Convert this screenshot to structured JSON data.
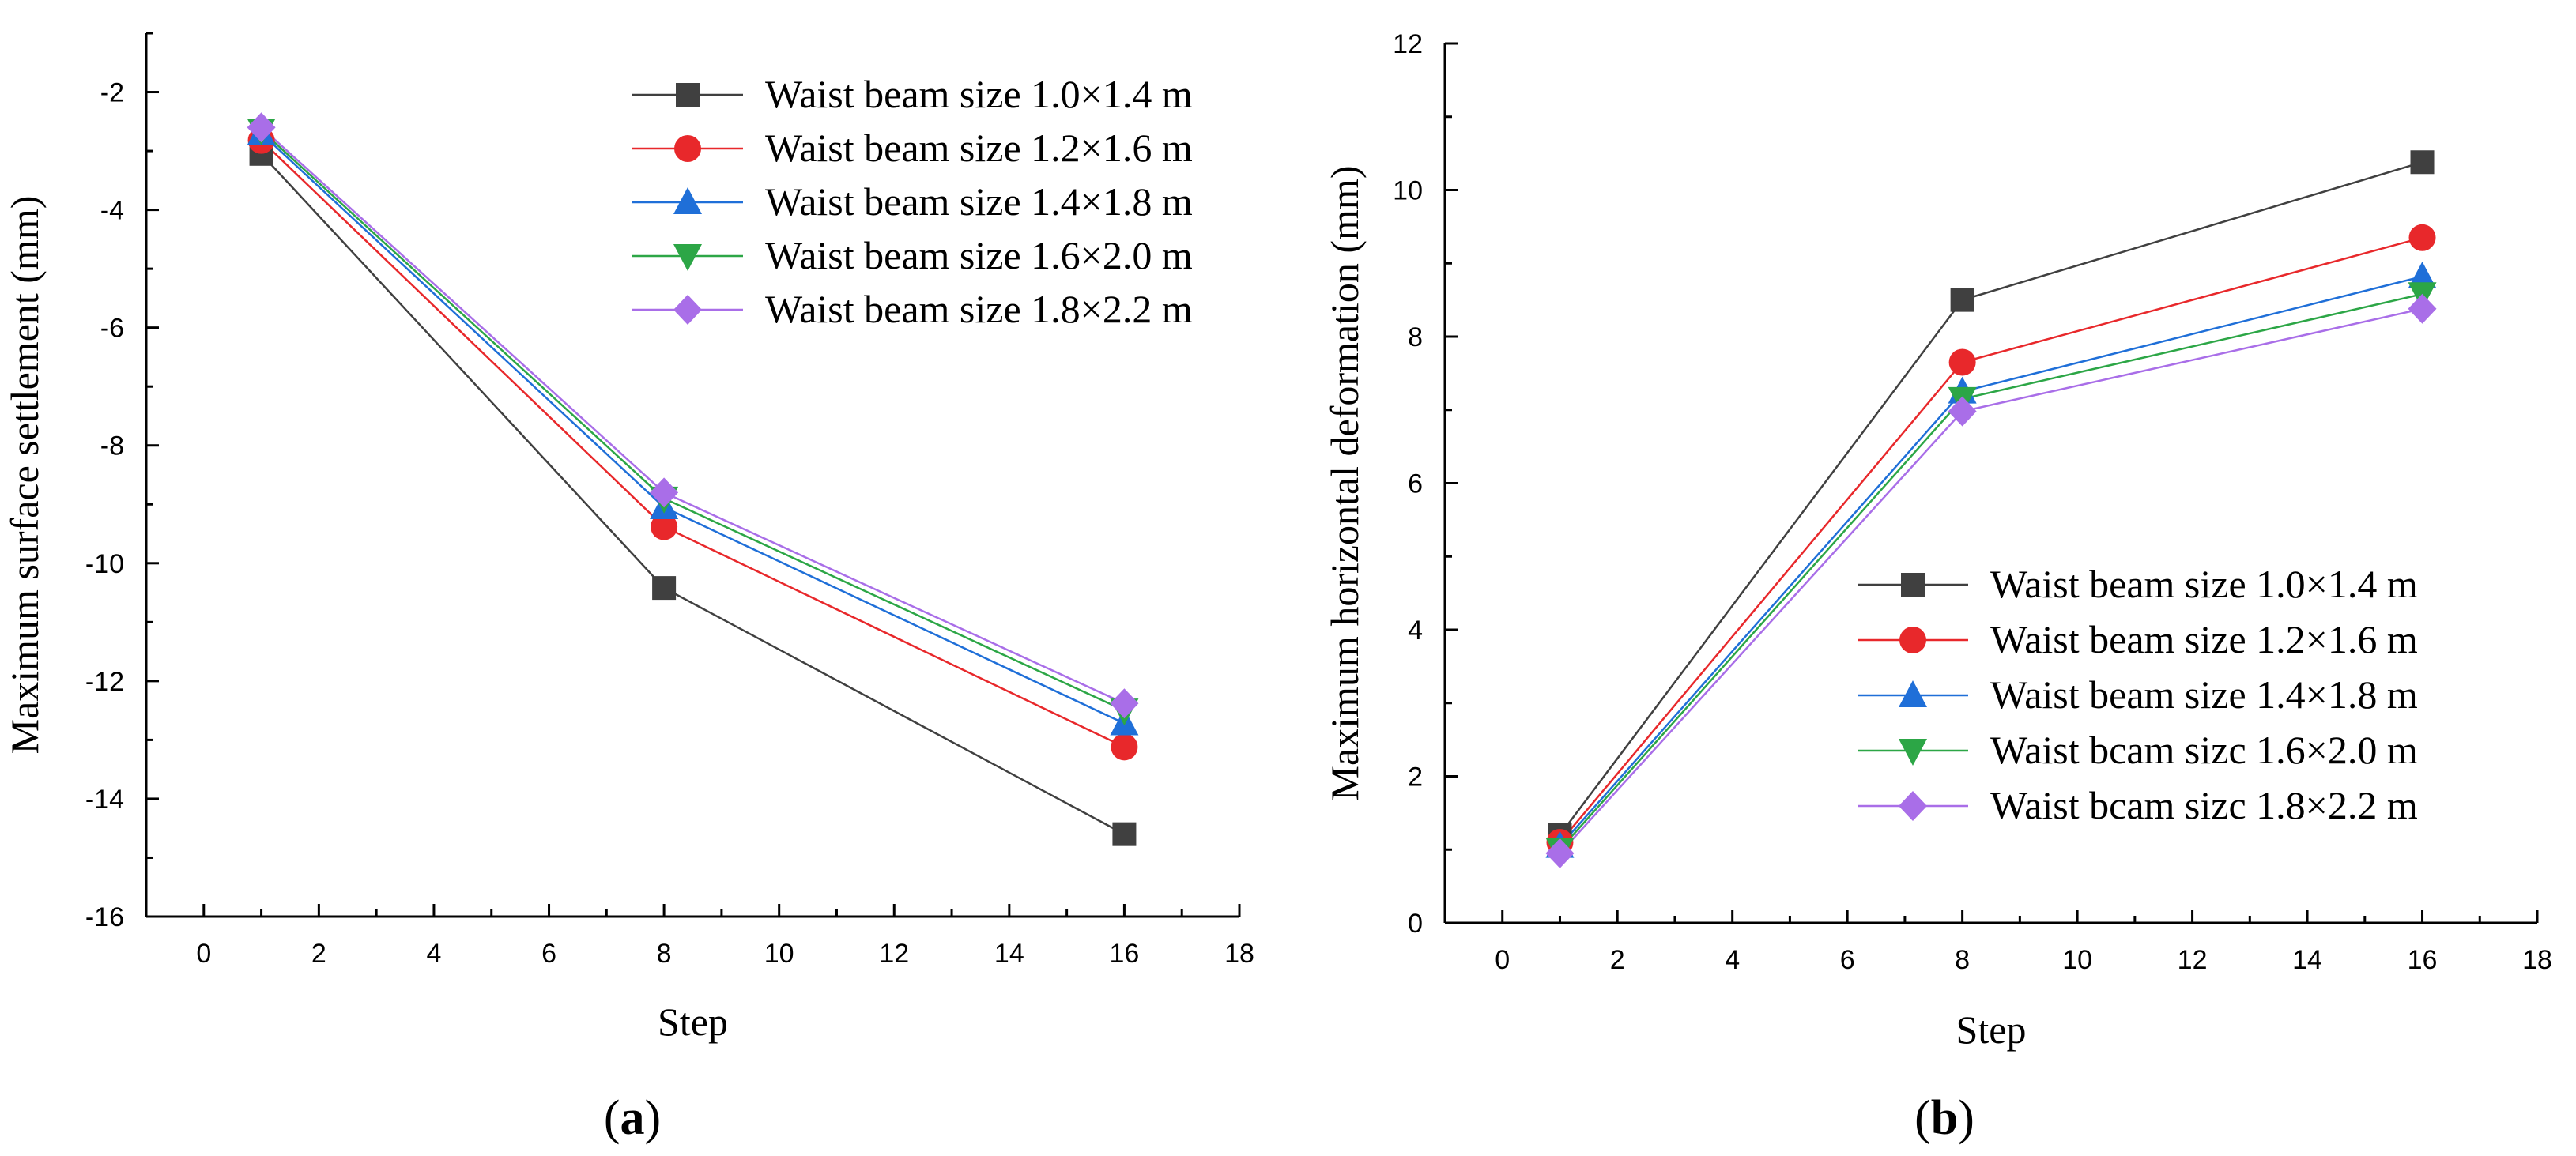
{
  "chart_data": [
    {
      "type": "line",
      "panel_label": "a",
      "xlabel": "Step",
      "ylabel": "Maximum surface settlement (mm)",
      "x": [
        1,
        8,
        16
      ],
      "xlim": [
        -1,
        18
      ],
      "ylim": [
        -16,
        -1
      ],
      "xticks": [
        0,
        2,
        4,
        6,
        8,
        10,
        12,
        14,
        16,
        18
      ],
      "yticks": [
        -16,
        -14,
        -12,
        -10,
        -8,
        -6,
        -4,
        -2
      ],
      "legend_position": "top-right",
      "series": [
        {
          "name": "Waist beam size 1.0×1.4 m",
          "color": "#404040",
          "marker": "square",
          "values": [
            -3.05,
            -10.42,
            -14.6
          ]
        },
        {
          "name": "Waist beam size 1.2×1.6 m",
          "color": "#e8282b",
          "marker": "circle",
          "values": [
            -2.82,
            -9.38,
            -13.12
          ]
        },
        {
          "name": "Waist beam size 1.4×1.8 m",
          "color": "#1f6fd8",
          "marker": "triangle-up",
          "values": [
            -2.7,
            -9.05,
            -12.72
          ]
        },
        {
          "name": "Waist beam size 1.6×2.0 m",
          "color": "#2ca646",
          "marker": "triangle-down",
          "values": [
            -2.65,
            -8.9,
            -12.5
          ]
        },
        {
          "name": "Waist beam size 1.8×2.2 m",
          "color": "#a96ee8",
          "marker": "diamond",
          "values": [
            -2.6,
            -8.8,
            -12.38
          ]
        }
      ]
    },
    {
      "type": "line",
      "panel_label": "b",
      "xlabel": "Step",
      "ylabel": "Maximum horizontal deformation (mm)",
      "x": [
        1,
        8,
        16
      ],
      "xlim": [
        -1,
        18
      ],
      "ylim": [
        0,
        12
      ],
      "xticks": [
        0,
        2,
        4,
        6,
        8,
        10,
        12,
        14,
        16,
        18
      ],
      "yticks": [
        0,
        2,
        4,
        6,
        8,
        10,
        12
      ],
      "legend_position": "bottom-right",
      "series": [
        {
          "name": "Waist beam size 1.0×1.4 m",
          "color": "#404040",
          "marker": "square",
          "values": [
            1.2,
            8.5,
            10.38
          ]
        },
        {
          "name": "Waist beam size 1.2×1.6 m",
          "color": "#e8282b",
          "marker": "circle",
          "values": [
            1.1,
            7.65,
            9.35
          ]
        },
        {
          "name": "Waist beam size 1.4×1.8 m",
          "color": "#1f6fd8",
          "marker": "triangle-up",
          "values": [
            1.05,
            7.25,
            8.82
          ]
        },
        {
          "name": "Waist bcam sizc 1.6×2.0 m",
          "color": "#2ca646",
          "marker": "triangle-down",
          "values": [
            1.0,
            7.15,
            8.58
          ]
        },
        {
          "name": "Waist bcam sizc 1.8×2.2 m",
          "color": "#a96ee8",
          "marker": "diamond",
          "values": [
            0.95,
            6.98,
            8.38
          ]
        }
      ]
    }
  ]
}
